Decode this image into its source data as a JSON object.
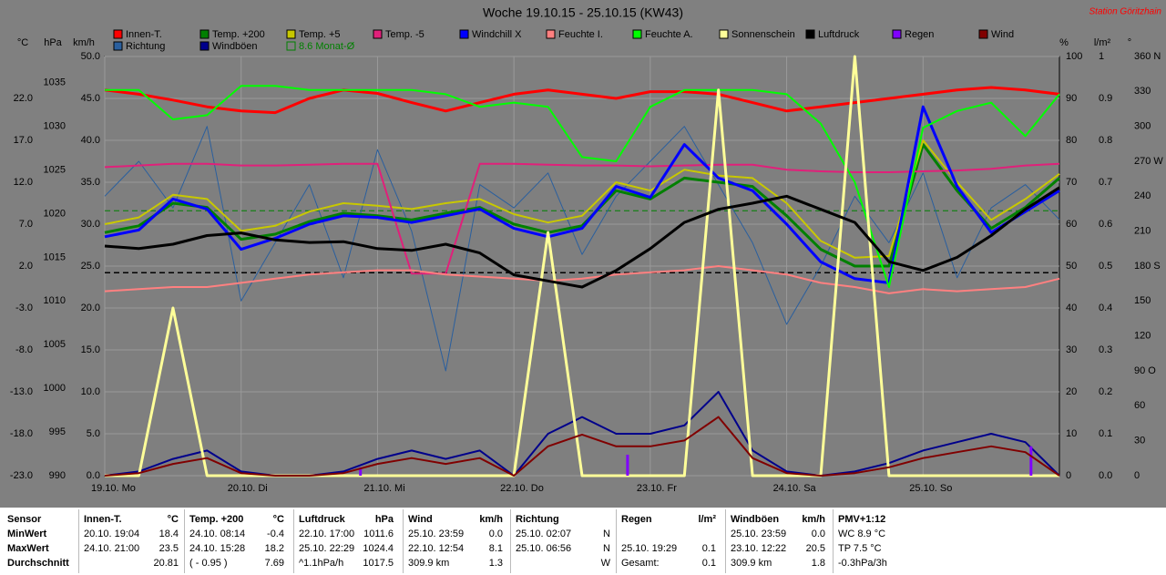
{
  "chart_data": {
    "type": "line",
    "title": "Woche 19.10.15 - 25.10.15 (KW43)",
    "subtitle": "Station Göritzhain",
    "x": [
      0,
      6,
      12,
      18,
      24,
      30,
      36,
      42,
      48,
      54,
      60,
      66,
      72,
      78,
      84,
      90,
      96,
      102,
      108,
      114,
      120,
      126,
      132,
      138,
      144,
      150,
      156,
      162,
      168
    ],
    "xlim": [
      0,
      168
    ],
    "xticks": [
      {
        "value": 0,
        "label": "19.10. Mo"
      },
      {
        "value": 24,
        "label": "20.10. Di"
      },
      {
        "value": 48,
        "label": "21.10. Mi"
      },
      {
        "value": 72,
        "label": "22.10. Do"
      },
      {
        "value": 96,
        "label": "23.10. Fr"
      },
      {
        "value": 120,
        "label": "24.10. Sa"
      },
      {
        "value": 144,
        "label": "25.10. So"
      }
    ],
    "grid": true,
    "axes": [
      {
        "label": "°C",
        "lim": [
          -23,
          27
        ],
        "ticks": [
          {
            "value": -23,
            "label": "-23.0"
          },
          {
            "value": -18,
            "label": "-18.0"
          },
          {
            "value": -13,
            "label": "-13.0"
          },
          {
            "value": -8,
            "label": "-8.0"
          },
          {
            "value": -3,
            "label": "-3.0"
          },
          {
            "value": 2,
            "label": "2.0"
          },
          {
            "value": 7,
            "label": "7.0"
          },
          {
            "value": 12,
            "label": "12.0"
          },
          {
            "value": 17,
            "label": "17.0"
          },
          {
            "value": 22,
            "label": "22.0"
          }
        ]
      },
      {
        "label": "hPa",
        "lim": [
          990,
          1038
        ],
        "ticks": [
          990,
          995,
          1000,
          1005,
          1010,
          1015,
          1020,
          1025,
          1030,
          1035
        ]
      },
      {
        "label": "km/h",
        "lim": [
          0,
          50
        ],
        "grid": true,
        "ticks": [
          {
            "value": 0,
            "label": "0.0"
          },
          {
            "value": 5,
            "label": "5.0"
          },
          {
            "value": 10,
            "label": "10.0"
          },
          {
            "value": 15,
            "label": "15.0"
          },
          {
            "value": 20,
            "label": "20.0"
          },
          {
            "value": 25,
            "label": "25.0"
          },
          {
            "value": 30,
            "label": "30.0"
          },
          {
            "value": 35,
            "label": "35.0"
          },
          {
            "value": 40,
            "label": "40.0"
          },
          {
            "value": 45,
            "label": "45.0"
          },
          {
            "value": 50,
            "label": "50.0"
          }
        ]
      },
      {
        "label": "%",
        "lim": [
          0,
          100
        ],
        "ticks": [
          0,
          10,
          20,
          30,
          40,
          50,
          60,
          70,
          80,
          90,
          100
        ]
      },
      {
        "label": "l/m²",
        "lim": [
          0,
          1
        ],
        "ticks": [
          {
            "value": 0,
            "label": "0.0"
          },
          0.1,
          0.2,
          0.3,
          0.4,
          0.5,
          0.6,
          0.7,
          0.8,
          0.9,
          1
        ]
      },
      {
        "label": "°",
        "lim": [
          0,
          360
        ],
        "ticks": [
          0,
          30,
          60,
          {
            "value": 90,
            "label": "90 O"
          },
          120,
          150,
          {
            "value": 180,
            "label": "180 S"
          },
          210,
          240,
          {
            "value": 270,
            "label": "270 W"
          },
          300,
          330,
          {
            "value": 360,
            "label": "360 N"
          }
        ]
      }
    ],
    "reference_lines": [
      {
        "label": "8.6 Monat-Ø",
        "value": 8.6,
        "axis": 0,
        "color": "#008000",
        "dashed": true
      },
      {
        "value": 1013.25,
        "axis": 1,
        "color": "#000000",
        "dashed": true
      }
    ],
    "series": [
      {
        "name": "Innen-T.",
        "color": "#ff0000",
        "axis": 0,
        "width": 3,
        "values": [
          23.0,
          22.5,
          21.8,
          21.0,
          20.5,
          20.3,
          22.0,
          23.0,
          22.6,
          21.5,
          20.5,
          21.5,
          22.5,
          23.0,
          22.5,
          22.0,
          22.8,
          22.8,
          22.5,
          21.5,
          20.5,
          21.0,
          21.5,
          22.0,
          22.5,
          23.0,
          23.3,
          23.0,
          22.5
        ]
      },
      {
        "name": "Richtung",
        "color": "#2a5f9e",
        "axis": 5,
        "width": 1,
        "values": [
          240,
          270,
          230,
          300,
          150,
          200,
          250,
          170,
          280,
          210,
          90,
          250,
          230,
          260,
          190,
          240,
          270,
          300,
          250,
          200,
          130,
          180,
          240,
          200,
          260,
          170,
          230,
          250,
          220
        ]
      },
      {
        "name": "Temp. +200",
        "color": "#008000",
        "axis": 0,
        "width": 3,
        "values": [
          6.0,
          6.8,
          9.5,
          9.0,
          5.2,
          5.8,
          7.3,
          8.3,
          8.0,
          7.5,
          8.3,
          9.0,
          7.0,
          6.0,
          6.8,
          11.0,
          10.0,
          12.5,
          12.0,
          11.5,
          8.0,
          4.0,
          2.0,
          2.0,
          16.5,
          11.0,
          6.5,
          9.0,
          12.5
        ]
      },
      {
        "name": "Windböen",
        "color": "#00008b",
        "axis": 2,
        "width": 2,
        "values": [
          0,
          0.5,
          2,
          3,
          0.5,
          0,
          0,
          0.5,
          2,
          3,
          2,
          3,
          0,
          5,
          7,
          5,
          5,
          6,
          10,
          3,
          0.5,
          0,
          0.5,
          1.5,
          3,
          4,
          5,
          4,
          0
        ]
      },
      {
        "name": "Temp. +5",
        "color": "#c8c800",
        "axis": 0,
        "width": 2,
        "values": [
          7.0,
          7.8,
          10.5,
          10.0,
          6.2,
          6.8,
          8.5,
          9.5,
          9.2,
          8.8,
          9.5,
          10.0,
          8.2,
          7.2,
          8.0,
          12.0,
          11.0,
          13.5,
          12.8,
          12.5,
          9.5,
          5.0,
          3.0,
          3.2,
          17.0,
          12.0,
          7.5,
          10.0,
          13.0
        ]
      },
      {
        "name": "Temp. -5",
        "color": "#e0207a",
        "axis": 0,
        "width": 2,
        "values": [
          13.8,
          14.0,
          14.2,
          14.2,
          14.0,
          14.0,
          14.1,
          14.2,
          14.2,
          1.1,
          1.1,
          14.2,
          14.2,
          14.1,
          14.0,
          14.0,
          13.9,
          14.0,
          14.1,
          14.1,
          13.5,
          13.3,
          13.2,
          13.2,
          13.3,
          13.4,
          13.6,
          14.0,
          14.2
        ]
      },
      {
        "name": "Windchill X",
        "color": "#0000ff",
        "axis": 0,
        "width": 3,
        "values": [
          5.5,
          6.3,
          10.0,
          8.8,
          4.0,
          5.3,
          7.0,
          8.0,
          7.8,
          7.2,
          8.0,
          8.8,
          6.5,
          5.5,
          6.5,
          11.5,
          10.2,
          16.5,
          12.5,
          11.0,
          7.0,
          2.5,
          0.5,
          0.0,
          21.0,
          11.5,
          6.0,
          8.5,
          11.0
        ]
      },
      {
        "name": "Feuchte I.",
        "color": "#ff8080",
        "axis": 3,
        "width": 2,
        "values": [
          44,
          44.5,
          45,
          45,
          46,
          47,
          48,
          48.5,
          49,
          49,
          48,
          47.5,
          47,
          46.5,
          47,
          48,
          48.5,
          49,
          50,
          49,
          48,
          46,
          45,
          43.5,
          44.5,
          44,
          44.5,
          45,
          47
        ]
      },
      {
        "name": "Feuchte A.",
        "color": "#00ff00",
        "axis": 3,
        "width": 2,
        "values": [
          92,
          92,
          85,
          86,
          93,
          93,
          92,
          92,
          92,
          92,
          91,
          88,
          89,
          88,
          76,
          75,
          88,
          92,
          92,
          92,
          91,
          84,
          70,
          45,
          83,
          87,
          89,
          81,
          91
        ]
      },
      {
        "name": "Sonnenschein",
        "color": "#ffff99",
        "axis": 3,
        "width": 3,
        "values": [
          0,
          0,
          40,
          0,
          0,
          0,
          0,
          0,
          0,
          0,
          0,
          0,
          0,
          58,
          0,
          0,
          0,
          0,
          92,
          0,
          0,
          0,
          100,
          0,
          0,
          0,
          0,
          0,
          0
        ]
      },
      {
        "name": "Luftdruck",
        "color": "#000000",
        "axis": 1,
        "width": 3,
        "values": [
          1016.3,
          1016.0,
          1016.5,
          1017.5,
          1017.8,
          1017.0,
          1016.7,
          1016.8,
          1016.0,
          1015.8,
          1016.5,
          1015.5,
          1013.0,
          1012.3,
          1011.6,
          1013.5,
          1016.0,
          1019.0,
          1020.5,
          1021.2,
          1022.0,
          1020.5,
          1019.0,
          1014.5,
          1013.5,
          1015.0,
          1017.5,
          1020.5,
          1023.0
        ]
      },
      {
        "name": "Regen",
        "color": "#8000ff",
        "axis": 4,
        "kind": "bar",
        "x": [
          45,
          92,
          163
        ],
        "values": [
          0.02,
          0.05,
          0.07
        ]
      },
      {
        "name": "Wind",
        "color": "#800000",
        "axis": 2,
        "width": 2,
        "values": [
          0,
          0.3,
          1.4,
          2.1,
          0.3,
          0,
          0,
          0.3,
          1.4,
          2.1,
          1.4,
          2.1,
          0,
          3.5,
          4.9,
          3.5,
          3.5,
          4.2,
          7,
          2.1,
          0.3,
          0,
          0.3,
          1,
          2.1,
          2.8,
          3.5,
          2.8,
          0
        ]
      }
    ]
  },
  "table": {
    "row_labels": [
      "Sensor",
      "MinWert",
      "MaxWert",
      "Durchschnitt"
    ],
    "columns": [
      {
        "header": "Innen-T.",
        "unit": "°C",
        "cells": [
          [
            "20.10. 19:04",
            "18.4"
          ],
          [
            "24.10. 21:00",
            "23.5"
          ],
          [
            null,
            "20.81"
          ]
        ]
      },
      {
        "header": "Temp. +200",
        "unit": "°C",
        "cells": [
          [
            "24.10. 08:14",
            "-0.4"
          ],
          [
            "24.10. 15:28",
            "18.2"
          ],
          [
            "( - 0.95 )",
            "7.69"
          ]
        ]
      },
      {
        "header": "Luftdruck",
        "unit": "hPa",
        "cells": [
          [
            "22.10. 17:00",
            "1011.6"
          ],
          [
            "25.10. 22:29",
            "1024.4"
          ],
          [
            "^1.1hPa/h",
            "1017.5"
          ]
        ]
      },
      {
        "header": "Wind",
        "unit": "km/h",
        "cells": [
          [
            "25.10. 23:59",
            "0.0"
          ],
          [
            "22.10. 12:54",
            "8.1"
          ],
          [
            "309.9 km",
            "1.3"
          ]
        ]
      },
      {
        "header": "Richtung",
        "cells": [
          [
            "25.10. 02:07",
            "N"
          ],
          [
            "25.10. 06:56",
            "N"
          ],
          [
            null,
            "W"
          ]
        ]
      },
      {
        "header": "Regen",
        "unit": "l/m²",
        "cells": [
          [
            null,
            null
          ],
          [
            "25.10. 19:29",
            "0.1"
          ],
          [
            "Gesamt:",
            "0.1"
          ]
        ]
      },
      {
        "header": "Windböen",
        "unit": "km/h",
        "cells": [
          [
            "25.10. 23:59",
            "0.0"
          ],
          [
            "23.10. 12:22",
            "20.5"
          ],
          [
            "309.9 km",
            "1.8"
          ]
        ]
      },
      {
        "header": "PMV+1:12",
        "cells": [
          [
            "WC 8.9 °C"
          ],
          [
            "TP 7.5 °C"
          ],
          [
            "-0.3hPa/3h"
          ]
        ]
      }
    ]
  }
}
